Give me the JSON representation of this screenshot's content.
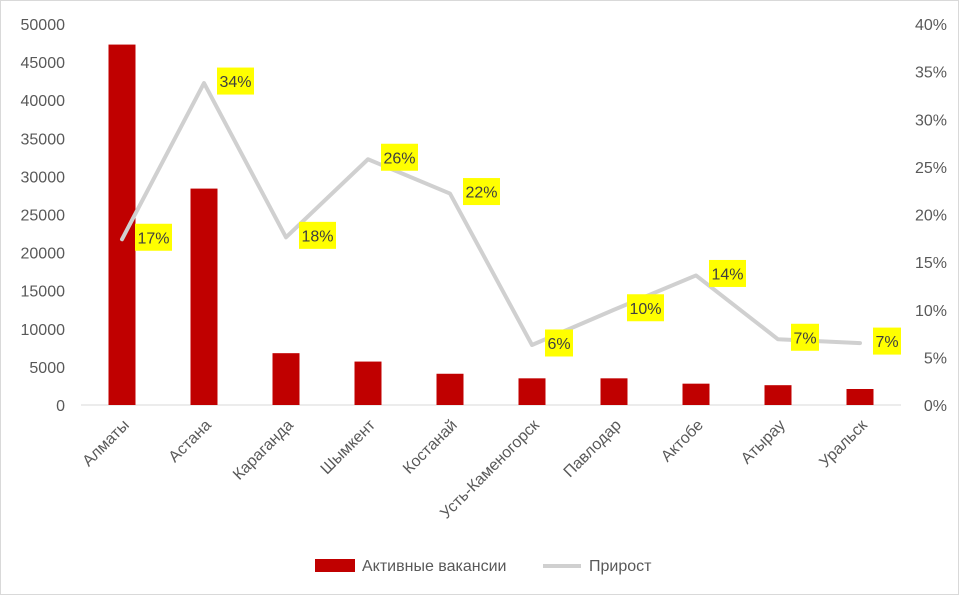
{
  "chart_data": {
    "type": "bar",
    "title": "",
    "categories": [
      "Алматы",
      "Астана",
      "Караганда",
      "Шымкент",
      "Костанай",
      "Усть-Каменогорск",
      "Павлодар",
      "Актобе",
      "Атырау",
      "Уральск"
    ],
    "series": [
      {
        "name": "Активные вакансии",
        "type": "bar",
        "axis": "left",
        "color": "#C00000",
        "values": [
          47300,
          28400,
          6800,
          5700,
          4100,
          3500,
          3500,
          2800,
          2600,
          2100
        ]
      },
      {
        "name": "Прирост",
        "type": "line",
        "axis": "right",
        "color": "#D0D0D0",
        "values": [
          0.174,
          0.338,
          0.176,
          0.258,
          0.222,
          0.063,
          0.1,
          0.136,
          0.069,
          0.065
        ],
        "data_labels": [
          "17%",
          "34%",
          "18%",
          "26%",
          "22%",
          "6%",
          "10%",
          "14%",
          "7%",
          "7%"
        ],
        "label_background": "#FFFF00"
      }
    ],
    "y_left": {
      "min": 0,
      "max": 50000,
      "ticks": [
        "0",
        "5000",
        "10000",
        "15000",
        "20000",
        "25000",
        "30000",
        "35000",
        "40000",
        "45000",
        "50000"
      ]
    },
    "y_right": {
      "min": 0,
      "max": 0.4,
      "ticks": [
        "0%",
        "5%",
        "10%",
        "15%",
        "20%",
        "25%",
        "30%",
        "35%",
        "40%"
      ]
    },
    "grid": false,
    "legend": "bottom",
    "x_label_rotation": "-45"
  }
}
